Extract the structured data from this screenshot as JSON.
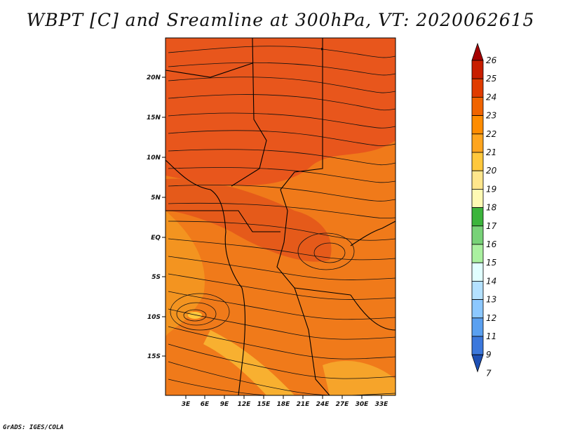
{
  "title": "WBPT [C] and Sreamline at 300hPa, VT: 2020062615",
  "credit": "GrADS: IGES/COLA",
  "map": {
    "y_ticks": [
      "20N",
      "15N",
      "10N",
      "5N",
      "EQ",
      "5S",
      "10S",
      "15S"
    ],
    "x_ticks": [
      "3E",
      "6E",
      "9E",
      "12E",
      "15E",
      "18E",
      "21E",
      "24E",
      "27E",
      "30E",
      "33E"
    ]
  },
  "colorbar": {
    "labels": [
      "26",
      "25",
      "24",
      "23",
      "22",
      "21",
      "20",
      "19",
      "18",
      "17",
      "16",
      "15",
      "14",
      "13",
      "12",
      "11",
      "9",
      "7"
    ],
    "colors": [
      "#a50000",
      "#c81e00",
      "#e03c00",
      "#f06400",
      "#ff8c00",
      "#ffa51e",
      "#ffc83c",
      "#ffe68c",
      "#fffab4",
      "#3cb43c",
      "#78d278",
      "#aaf0a0",
      "#e1ffff",
      "#b4e1ff",
      "#8cc8ff",
      "#5aa0f0",
      "#3c78dc",
      "#1e50b4"
    ]
  }
}
